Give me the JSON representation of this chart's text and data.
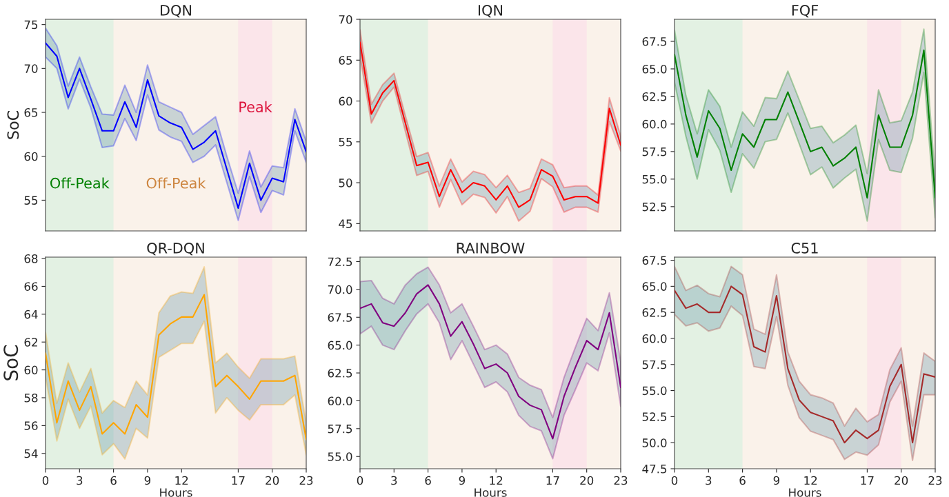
{
  "chart_data": [
    {
      "type": "line",
      "title": "DQN",
      "ylabel": "SoC",
      "tick_labels": "y",
      "x": [
        0,
        1,
        2,
        3,
        4,
        5,
        6,
        7,
        8,
        9,
        10,
        11,
        12,
        13,
        14,
        15,
        16,
        17,
        18,
        19,
        20,
        21,
        22,
        23
      ],
      "series": [
        {
          "color": "#0000ff",
          "values": [
            72.9,
            71.4,
            66.7,
            70.0,
            66.5,
            62.9,
            62.9,
            66.2,
            63.3,
            68.7,
            64.6,
            63.8,
            63.3,
            60.8,
            61.6,
            62.9,
            58.5,
            54.1,
            59.2,
            55.0,
            57.5,
            57.1,
            64.2,
            60.5
          ],
          "upper": [
            74.6,
            72.6,
            68.0,
            71.3,
            67.9,
            64.8,
            64.7,
            68.1,
            65.0,
            70.4,
            66.2,
            65.6,
            65.0,
            62.5,
            63.5,
            64.5,
            60.0,
            55.8,
            60.6,
            56.5,
            58.9,
            58.7,
            65.4,
            61.7
          ],
          "lower": [
            71.3,
            70.0,
            65.4,
            68.8,
            65.5,
            61.0,
            61.2,
            64.3,
            61.8,
            67.0,
            63.0,
            62.2,
            61.7,
            59.3,
            60.0,
            61.3,
            57.0,
            52.7,
            57.7,
            53.6,
            56.1,
            55.6,
            62.9,
            59.3
          ]
        }
      ],
      "xlim": [
        0,
        23
      ],
      "xticks": [
        0,
        3,
        6,
        9,
        12,
        17,
        20,
        23
      ],
      "ylim": [
        51.5,
        75.6
      ],
      "yticks": [
        55,
        60,
        65,
        70,
        75
      ],
      "bands": [
        {
          "axis": "x",
          "from": 0,
          "to": 6,
          "color": "#008000",
          "label": "Off-Peak"
        },
        {
          "axis": "x",
          "from": 6,
          "to": 17,
          "color": "#cd853f",
          "label": "Off-Peak"
        },
        {
          "axis": "x",
          "from": 17,
          "to": 20,
          "color": "#dc143c",
          "label": "Peak"
        },
        {
          "axis": "x",
          "from": 20,
          "to": 23,
          "color": "#cd853f"
        }
      ]
    },
    {
      "type": "line",
      "title": "IQN",
      "tick_labels": "y",
      "x": [
        0,
        1,
        2,
        3,
        4,
        5,
        6,
        7,
        8,
        9,
        10,
        11,
        12,
        13,
        14,
        15,
        16,
        17,
        18,
        19,
        20,
        21,
        22,
        23
      ],
      "series": [
        {
          "color": "#ff0000",
          "values": [
            67.2,
            58.4,
            61.0,
            62.5,
            57.3,
            52.1,
            52.5,
            48.3,
            51.6,
            48.8,
            50.0,
            49.6,
            47.9,
            49.6,
            47.0,
            47.9,
            51.6,
            50.8,
            47.9,
            48.3,
            48.3,
            47.5,
            59.1,
            54.6
          ],
          "upper": [
            68.7,
            59.6,
            62.0,
            63.4,
            58.2,
            53.2,
            53.7,
            49.6,
            52.9,
            50.1,
            51.4,
            51.0,
            49.4,
            50.9,
            48.8,
            49.3,
            52.9,
            52.2,
            49.4,
            49.6,
            49.6,
            48.5,
            60.4,
            55.7
          ],
          "lower": [
            65.5,
            57.3,
            60.0,
            61.7,
            56.3,
            50.9,
            51.4,
            47.0,
            50.4,
            47.3,
            48.6,
            48.2,
            46.3,
            48.3,
            45.3,
            46.5,
            50.5,
            49.5,
            46.4,
            47.0,
            47.0,
            46.4,
            57.5,
            53.9
          ]
        }
      ],
      "xlim": [
        0,
        23
      ],
      "xticks": [
        0,
        3,
        6,
        9,
        12,
        17,
        20,
        23
      ],
      "ylim": [
        44.1,
        70
      ],
      "yticks": [
        45,
        50,
        55,
        60,
        65,
        70
      ],
      "bands": [
        {
          "axis": "x",
          "from": 0,
          "to": 6,
          "color": "#008000"
        },
        {
          "axis": "x",
          "from": 6,
          "to": 17,
          "color": "#cd853f"
        },
        {
          "axis": "x",
          "from": 17,
          "to": 20,
          "color": "#dc143c"
        },
        {
          "axis": "x",
          "from": 20,
          "to": 23,
          "color": "#cd853f"
        }
      ]
    },
    {
      "type": "line",
      "title": "FQF",
      "tick_labels": "y",
      "x": [
        0,
        1,
        2,
        3,
        4,
        5,
        6,
        7,
        8,
        9,
        10,
        11,
        12,
        13,
        14,
        15,
        16,
        17,
        18,
        19,
        20,
        21,
        22,
        23
      ],
      "series": [
        {
          "color": "#008000",
          "values": [
            66.3,
            60.8,
            57.0,
            61.2,
            59.6,
            55.8,
            59.1,
            57.9,
            60.4,
            60.4,
            62.9,
            60.2,
            57.5,
            57.9,
            56.2,
            56.9,
            57.9,
            53.3,
            60.8,
            57.9,
            57.9,
            60.8,
            66.7,
            53.3
          ],
          "upper": [
            68.5,
            62.6,
            59.1,
            63.1,
            61.6,
            57.9,
            61.1,
            59.8,
            62.4,
            62.3,
            64.8,
            62.2,
            59.6,
            59.8,
            58.3,
            59.0,
            59.9,
            55.5,
            63.1,
            60.1,
            60.3,
            62.9,
            68.6,
            55.0
          ],
          "lower": [
            63.8,
            58.9,
            55.0,
            59.5,
            57.6,
            53.8,
            57.3,
            56.0,
            58.4,
            58.6,
            61.0,
            58.2,
            55.4,
            56.1,
            54.2,
            55.1,
            55.9,
            51.2,
            58.6,
            55.8,
            55.6,
            58.7,
            64.7,
            51.5
          ]
        }
      ],
      "xlim": [
        0,
        23
      ],
      "xticks": [
        0,
        3,
        6,
        9,
        12,
        17,
        20,
        23
      ],
      "ylim": [
        50.3,
        69.5
      ],
      "yticks": [
        52.5,
        {
          "value": 55,
          "label": "55.0"
        },
        57.5,
        {
          "value": 60,
          "label": "60.0"
        },
        62.5,
        {
          "value": 65,
          "label": "65.0"
        },
        67.5
      ],
      "bands": [
        {
          "axis": "x",
          "from": 0,
          "to": 6,
          "color": "#008000"
        },
        {
          "axis": "x",
          "from": 6,
          "to": 17,
          "color": "#cd853f"
        },
        {
          "axis": "x",
          "from": 17,
          "to": 20,
          "color": "#dc143c"
        },
        {
          "axis": "x",
          "from": 20,
          "to": 23,
          "color": "#cd853f"
        }
      ]
    },
    {
      "type": "line",
      "title": "QR-DQN",
      "ylabel": "SoC",
      "xlabel": "Hours",
      "x": [
        0,
        1,
        2,
        3,
        4,
        5,
        6,
        7,
        8,
        9,
        10,
        11,
        12,
        13,
        14,
        15,
        16,
        17,
        18,
        19,
        20,
        21,
        22,
        23
      ],
      "series": [
        {
          "color": "#ffa500",
          "values": [
            61.2,
            56.2,
            59.2,
            57.1,
            58.8,
            55.4,
            56.2,
            55.4,
            57.5,
            56.6,
            62.5,
            63.3,
            63.8,
            63.8,
            65.4,
            58.8,
            59.6,
            58.8,
            57.9,
            59.2,
            59.2,
            59.2,
            59.6,
            55.0
          ],
          "upper": [
            62.7,
            57.6,
            60.5,
            58.4,
            60.1,
            56.9,
            57.8,
            57.3,
            59.2,
            58.2,
            64.1,
            65.3,
            65.6,
            65.5,
            67.4,
            60.5,
            61.2,
            60.2,
            59.4,
            60.8,
            60.8,
            60.8,
            61.0,
            56.2
          ],
          "lower": [
            59.5,
            54.9,
            57.9,
            55.8,
            57.4,
            53.9,
            54.7,
            53.6,
            55.8,
            55.1,
            60.9,
            61.4,
            61.9,
            61.9,
            63.5,
            56.9,
            58.0,
            57.1,
            56.4,
            57.5,
            57.5,
            57.5,
            58.2,
            53.9
          ]
        }
      ],
      "xlim": [
        0,
        23
      ],
      "xticks": [
        0,
        3,
        6,
        9,
        12,
        17,
        20,
        23
      ],
      "ylim": [
        52.9,
        68.1
      ],
      "yticks": [
        54,
        56,
        58,
        60,
        62,
        64,
        66,
        68
      ],
      "bands": [
        {
          "axis": "x",
          "from": 0,
          "to": 6,
          "color": "#008000"
        },
        {
          "axis": "x",
          "from": 6,
          "to": 17,
          "color": "#cd853f"
        },
        {
          "axis": "x",
          "from": 17,
          "to": 20,
          "color": "#dc143c"
        },
        {
          "axis": "x",
          "from": 20,
          "to": 23,
          "color": "#cd853f"
        }
      ]
    },
    {
      "type": "line",
      "title": "RAINBOW",
      "xlabel": "Hours",
      "x": [
        0,
        1,
        2,
        3,
        4,
        5,
        6,
        7,
        8,
        9,
        10,
        11,
        12,
        13,
        14,
        15,
        16,
        17,
        18,
        19,
        20,
        21,
        22,
        23
      ],
      "series": [
        {
          "color": "#800080",
          "values": [
            68.3,
            68.7,
            67.0,
            66.7,
            67.9,
            69.6,
            70.4,
            68.7,
            65.8,
            67.1,
            65.1,
            62.9,
            63.3,
            62.5,
            60.4,
            59.6,
            59.2,
            56.6,
            60.4,
            63.0,
            65.4,
            64.6,
            67.9,
            61.2
          ],
          "upper": [
            70.7,
            70.8,
            69.2,
            68.7,
            70.4,
            71.4,
            72.0,
            70.4,
            67.9,
            68.7,
            66.7,
            64.6,
            65.0,
            64.2,
            62.1,
            61.4,
            61.0,
            58.5,
            62.1,
            64.8,
            67.4,
            66.3,
            69.7,
            63.5
          ],
          "lower": [
            66.0,
            66.7,
            65.0,
            64.6,
            66.3,
            67.8,
            68.7,
            67.0,
            63.7,
            65.4,
            63.3,
            61.2,
            61.7,
            60.8,
            58.7,
            57.7,
            57.3,
            54.8,
            58.7,
            61.0,
            63.4,
            62.7,
            66.1,
            59.5
          ]
        }
      ],
      "xlim": [
        0,
        23
      ],
      "xticks": [
        0,
        3,
        6,
        9,
        12,
        17,
        20,
        23
      ],
      "ylim": [
        53.9,
        72.9
      ],
      "yticks": [
        {
          "value": 55,
          "label": "55.0"
        },
        57.5,
        {
          "value": 60,
          "label": "60.0"
        },
        62.5,
        {
          "value": 65,
          "label": "65.0"
        },
        67.5,
        {
          "value": 70,
          "label": "70.0"
        },
        72.5
      ],
      "bands": [
        {
          "axis": "x",
          "from": 0,
          "to": 6,
          "color": "#008000"
        },
        {
          "axis": "x",
          "from": 6,
          "to": 17,
          "color": "#cd853f"
        },
        {
          "axis": "x",
          "from": 17,
          "to": 20,
          "color": "#dc143c"
        },
        {
          "axis": "x",
          "from": 20,
          "to": 23,
          "color": "#cd853f"
        }
      ]
    },
    {
      "type": "line",
      "title": "C51",
      "xlabel": "Hours",
      "x": [
        0,
        1,
        2,
        3,
        4,
        5,
        6,
        7,
        8,
        9,
        10,
        11,
        12,
        13,
        14,
        15,
        16,
        17,
        18,
        19,
        20,
        21,
        22,
        23
      ],
      "series": [
        {
          "color": "#a52a2a",
          "values": [
            64.6,
            62.9,
            63.3,
            62.5,
            62.5,
            65.0,
            64.2,
            59.2,
            58.7,
            64.1,
            57.1,
            54.1,
            52.9,
            52.5,
            52.1,
            50.0,
            51.2,
            50.4,
            51.2,
            55.4,
            57.5,
            50.0,
            56.6,
            56.3
          ],
          "upper": [
            66.9,
            64.6,
            65.1,
            64.3,
            64.0,
            66.9,
            66.1,
            60.9,
            60.4,
            66.1,
            58.7,
            55.9,
            54.6,
            54.3,
            53.8,
            51.6,
            53.3,
            52.0,
            52.7,
            57.0,
            59.1,
            51.6,
            58.6,
            57.8
          ],
          "lower": [
            62.3,
            61.2,
            61.5,
            60.7,
            61.0,
            63.1,
            62.2,
            57.3,
            57.1,
            62.1,
            55.5,
            52.4,
            51.1,
            50.7,
            50.3,
            48.4,
            49.1,
            48.8,
            49.8,
            53.9,
            55.9,
            48.3,
            54.6,
            54.6
          ]
        }
      ],
      "xlim": [
        0,
        23
      ],
      "xticks": [
        0,
        3,
        6,
        9,
        12,
        17,
        20,
        23
      ],
      "ylim": [
        47.5,
        67.8
      ],
      "yticks": [
        47.5,
        {
          "value": 50,
          "label": "50.0"
        },
        52.5,
        {
          "value": 55,
          "label": "55.0"
        },
        57.5,
        {
          "value": 60,
          "label": "60.0"
        },
        62.5,
        {
          "value": 65,
          "label": "65.0"
        },
        67.5
      ],
      "bands": [
        {
          "axis": "x",
          "from": 0,
          "to": 6,
          "color": "#008000"
        },
        {
          "axis": "x",
          "from": 6,
          "to": 17,
          "color": "#cd853f"
        },
        {
          "axis": "x",
          "from": 17,
          "to": 20,
          "color": "#dc143c"
        },
        {
          "axis": "x",
          "from": 20,
          "to": 23,
          "color": "#cd853f"
        }
      ]
    }
  ]
}
